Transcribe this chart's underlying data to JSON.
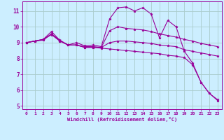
{
  "bg_color": "#cceeff",
  "grid_color": "#aacccc",
  "line_color": "#990099",
  "marker": "*",
  "xlim": [
    -0.5,
    23.5
  ],
  "ylim": [
    4.8,
    11.6
  ],
  "yticks": [
    5,
    6,
    7,
    8,
    9,
    10,
    11
  ],
  "xticks": [
    0,
    1,
    2,
    3,
    4,
    5,
    6,
    7,
    8,
    9,
    10,
    11,
    12,
    13,
    14,
    15,
    16,
    17,
    18,
    19,
    20,
    21,
    22,
    23
  ],
  "xlabel": "Windchill (Refroidissement éolien,°C)",
  "lines": [
    [
      0,
      1,
      2,
      3,
      4,
      5,
      6,
      7,
      8,
      9,
      10,
      11,
      12,
      13,
      14,
      15,
      16,
      17,
      18,
      19,
      20,
      21,
      22,
      23
    ],
    [
      9.0,
      9.1,
      9.2,
      9.7,
      9.15,
      8.85,
      9.0,
      8.8,
      8.85,
      8.75,
      10.5,
      11.2,
      11.25,
      11.0,
      11.2,
      10.8,
      9.3,
      10.4,
      10.0,
      8.45,
      7.7,
      6.5,
      5.8,
      5.4
    ],
    [
      9.0,
      9.1,
      9.15,
      9.55,
      9.15,
      8.85,
      8.85,
      8.75,
      8.75,
      8.7,
      9.75,
      10.0,
      9.9,
      9.85,
      9.8,
      9.7,
      9.55,
      9.45,
      9.35,
      9.2,
      9.1,
      8.95,
      8.85,
      8.75
    ],
    [
      9.0,
      9.1,
      9.2,
      9.5,
      9.1,
      8.85,
      8.85,
      8.7,
      8.7,
      8.7,
      9.0,
      9.1,
      9.1,
      9.05,
      9.0,
      8.95,
      8.85,
      8.8,
      8.75,
      8.55,
      8.45,
      8.35,
      8.25,
      8.15
    ],
    [
      9.0,
      9.1,
      9.2,
      9.55,
      9.1,
      8.85,
      8.85,
      8.7,
      8.7,
      8.65,
      8.6,
      8.55,
      8.5,
      8.45,
      8.4,
      8.35,
      8.3,
      8.2,
      8.15,
      8.05,
      7.6,
      6.5,
      5.8,
      5.35
    ]
  ]
}
